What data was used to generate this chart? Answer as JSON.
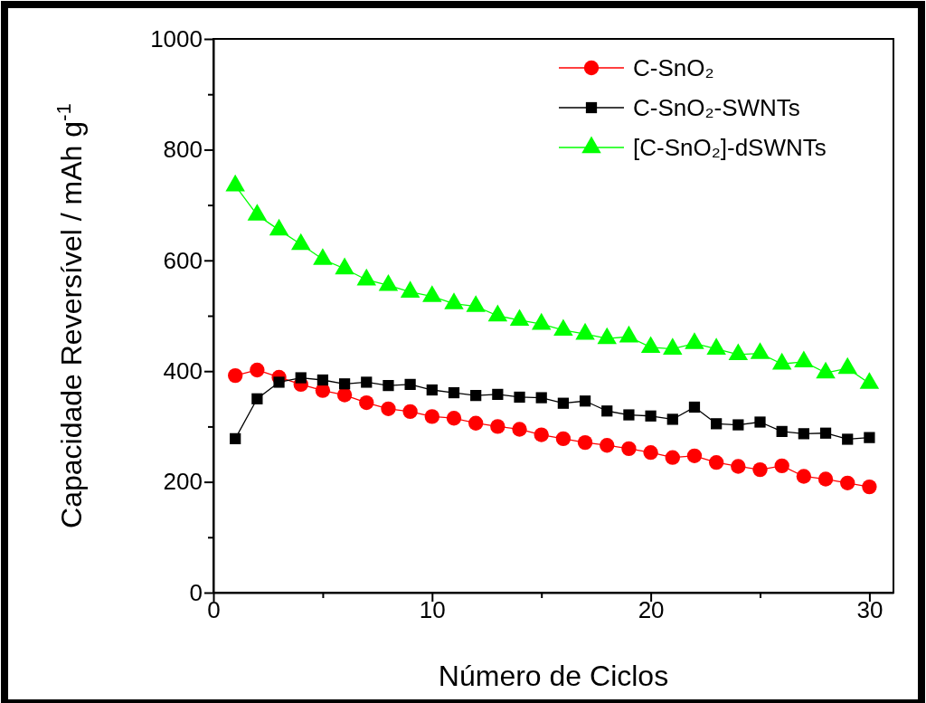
{
  "chart_data": {
    "type": "line",
    "xlabel": "Número de Ciclos",
    "ylabel": "Capacidade Reversível / mAh g$^{-1}$",
    "x": [
      1,
      2,
      3,
      4,
      5,
      6,
      7,
      8,
      9,
      10,
      11,
      12,
      13,
      14,
      15,
      16,
      17,
      18,
      19,
      20,
      21,
      22,
      23,
      24,
      25,
      26,
      27,
      28,
      29,
      30
    ],
    "xlim": [
      0,
      31.1
    ],
    "xticks": [
      0,
      {
        "value": 5,
        "label": null
      },
      10,
      {
        "value": 15,
        "label": null
      },
      20,
      {
        "value": 25,
        "label": null
      },
      30
    ],
    "ylim": [
      0,
      1000
    ],
    "yticks": [
      0,
      {
        "value": 100,
        "label": null
      },
      200,
      {
        "value": 300,
        "label": null
      },
      400,
      {
        "value": 500,
        "label": null
      },
      600,
      {
        "value": 700,
        "label": null
      },
      800,
      {
        "value": 900,
        "label": null
      },
      1000
    ],
    "legend": "top right",
    "grid": false,
    "line_style": "solid",
    "series": [
      {
        "name": "C-SnO₂",
        "color": "#ff0000",
        "marker": "circle",
        "values": [
          392,
          402,
          389,
          376,
          365,
          357,
          343,
          332,
          327,
          318,
          315,
          306,
          300,
          295,
          285,
          278,
          271,
          266,
          260,
          253,
          244,
          247,
          235,
          228,
          222,
          229,
          210,
          205,
          198,
          191
        ]
      },
      {
        "name": "C-SnO₂-SWNTs",
        "color": "#000000",
        "marker": "square",
        "values": [
          278,
          350,
          380,
          388,
          384,
          377,
          380,
          374,
          376,
          366,
          361,
          356,
          358,
          353,
          352,
          342,
          346,
          328,
          321,
          319,
          313,
          335,
          305,
          303,
          308,
          291,
          287,
          288,
          277,
          280
        ]
      },
      {
        "name": "[C-SnO₂]-dSWNTs",
        "color": "#00ff00",
        "marker": "triangle",
        "values": [
          735,
          682,
          655,
          629,
          602,
          585,
          565,
          555,
          543,
          535,
          522,
          517,
          500,
          492,
          485,
          474,
          467,
          459,
          462,
          443,
          440,
          450,
          440,
          430,
          432,
          413,
          417,
          397,
          405,
          378
        ]
      }
    ]
  }
}
